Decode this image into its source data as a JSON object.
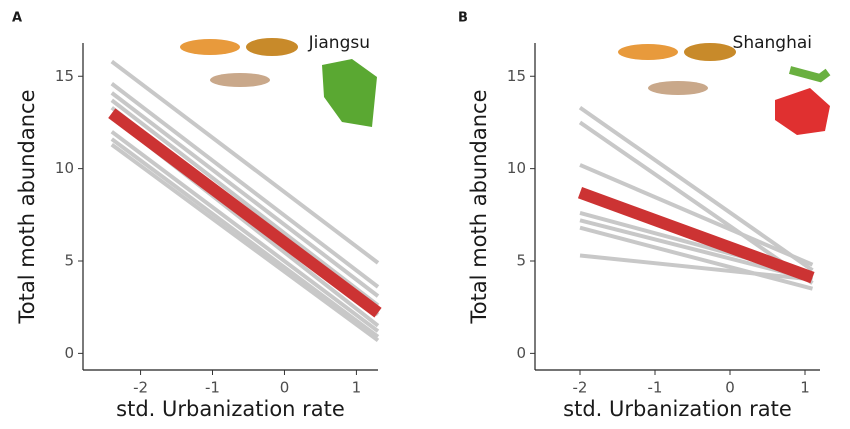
{
  "chart_data": [
    {
      "type": "line",
      "panel_label": "A",
      "title": "Jiangsu",
      "x_label": "std. Urbanization rate",
      "y_label": "Total moth abundance",
      "x": [
        -2.4,
        1.3
      ],
      "series": [
        {
          "color": "#c8c8c8",
          "values": [
            15.8,
            4.9
          ]
        },
        {
          "color": "#c8c8c8",
          "values": [
            14.6,
            3.6
          ]
        },
        {
          "color": "#c8c8c8",
          "values": [
            14.1,
            3.1
          ]
        },
        {
          "color": "#c8c8c8",
          "values": [
            13.7,
            2.6
          ]
        },
        {
          "color": "#c8c8c8",
          "values": [
            13.3,
            2.1
          ]
        },
        {
          "color": "#c8c8c8",
          "values": [
            12.8,
            1.5
          ]
        },
        {
          "color": "#c8c8c8",
          "values": [
            12.0,
            1.2
          ]
        },
        {
          "color": "#c8c8c8",
          "values": [
            11.6,
            0.9
          ]
        },
        {
          "color": "#c8c8c8",
          "values": [
            11.3,
            0.7
          ]
        },
        {
          "color": "#cc3333",
          "values": [
            13.0,
            2.2
          ]
        }
      ],
      "xlim": [
        -2.8,
        1.3
      ],
      "ylim": [
        -0.9,
        16.8
      ],
      "xticks": [
        -2,
        -1,
        0,
        1
      ],
      "yticks": [
        0,
        5,
        10,
        15
      ]
    },
    {
      "type": "line",
      "panel_label": "B",
      "title": "Shanghai",
      "x_label": "std. Urbanization rate",
      "y_label": "Total moth abundance",
      "x": [
        -2,
        1.1
      ],
      "series": [
        {
          "color": "#c8c8c8",
          "values": [
            13.3,
            4.5
          ]
        },
        {
          "color": "#c8c8c8",
          "values": [
            12.5,
            3.8
          ]
        },
        {
          "color": "#c8c8c8",
          "values": [
            10.2,
            4.8
          ]
        },
        {
          "color": "#c8c8c8",
          "values": [
            7.6,
            4.2
          ]
        },
        {
          "color": "#c8c8c8",
          "values": [
            7.2,
            4.0
          ]
        },
        {
          "color": "#c8c8c8",
          "values": [
            6.8,
            3.5
          ]
        },
        {
          "color": "#c8c8c8",
          "values": [
            5.3,
            4.0
          ]
        },
        {
          "color": "#cc3333",
          "values": [
            8.7,
            4.1
          ]
        }
      ],
      "xlim": [
        -2.6,
        1.2
      ],
      "ylim": [
        -0.9,
        16.8
      ],
      "xticks": [
        -2,
        -1,
        0,
        1
      ],
      "yticks": [
        0,
        5,
        10,
        15
      ]
    }
  ]
}
